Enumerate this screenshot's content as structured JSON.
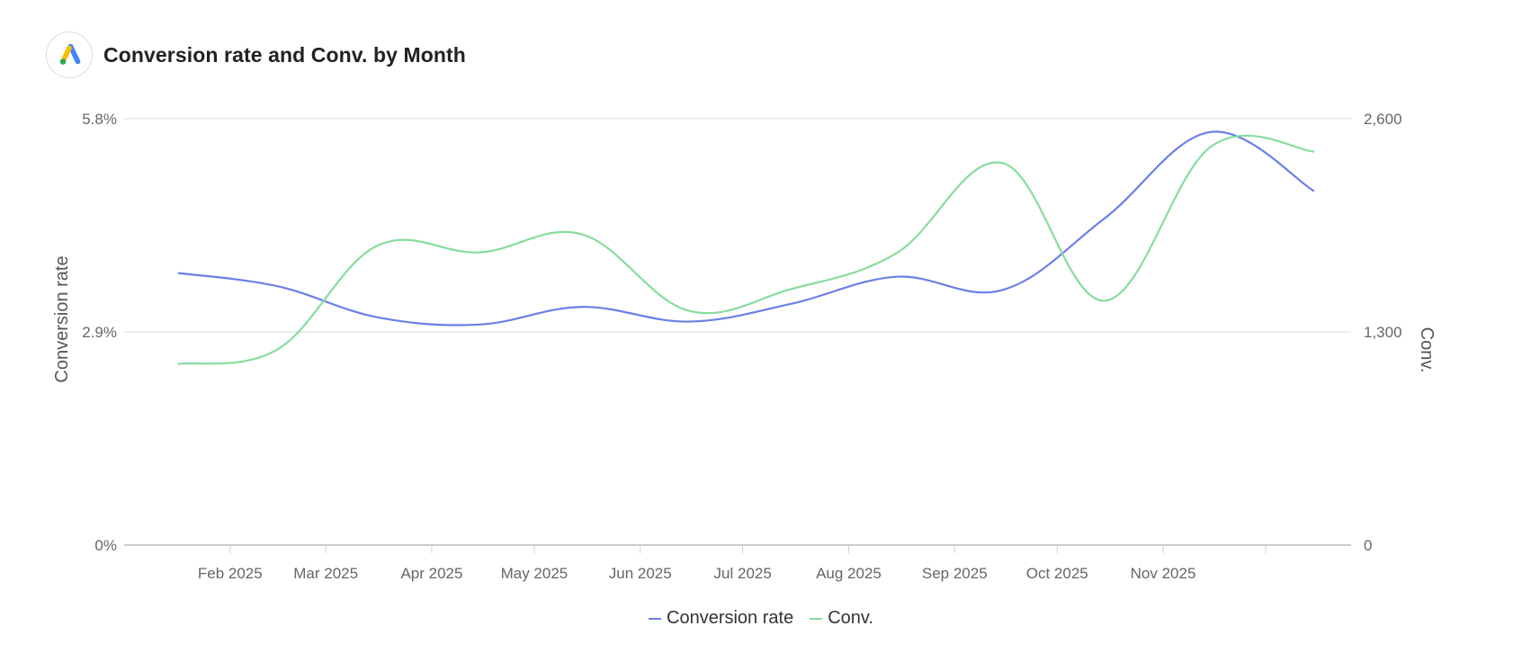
{
  "header": {
    "title": "Conversion rate and Conv. by Month",
    "logo_icon": "google-ads-icon"
  },
  "chart_data": {
    "type": "line",
    "title": "Conversion rate and Conv. by Month",
    "x_tick_labels": [
      "Feb 2025",
      "Mar 2025",
      "Apr 2025",
      "May 2025",
      "Jun 2025",
      "Jul 2025",
      "Aug 2025",
      "Sep 2025",
      "Oct 2025",
      "Nov 2025"
    ],
    "y_left": {
      "label": "Conversion rate",
      "ticks": [
        "0%",
        "2.9%",
        "5.8%"
      ],
      "range": [
        0,
        5.8
      ]
    },
    "y_right": {
      "label": "Conv.",
      "ticks": [
        "0",
        "1,300",
        "2,600"
      ],
      "range": [
        0,
        2600
      ]
    },
    "grid": true,
    "legend_position": "bottom-center",
    "series": [
      {
        "name": "Conversion rate",
        "axis": "left",
        "color": "#6b7fe6",
        "x": [
          "2025-01-17",
          "2025-02-15",
          "2025-03-16",
          "2025-04-15",
          "2025-05-15",
          "2025-06-15",
          "2025-07-15",
          "2025-08-15",
          "2025-09-15",
          "2025-10-15",
          "2025-11-15",
          "2025-12-15"
        ],
        "values": [
          3.7,
          3.52,
          3.1,
          3.0,
          3.24,
          3.04,
          3.28,
          3.65,
          3.47,
          4.45,
          5.62,
          4.82
        ]
      },
      {
        "name": "Conv.",
        "axis": "right",
        "color": "#86dd9e",
        "x": [
          "2025-01-17",
          "2025-02-15",
          "2025-03-16",
          "2025-04-15",
          "2025-05-15",
          "2025-06-15",
          "2025-07-15",
          "2025-08-15",
          "2025-09-15",
          "2025-10-15",
          "2025-11-15",
          "2025-12-15"
        ],
        "values": [
          1105,
          1195,
          1825,
          1785,
          1895,
          1430,
          1560,
          1780,
          2330,
          1490,
          2430,
          2400
        ]
      }
    ]
  }
}
